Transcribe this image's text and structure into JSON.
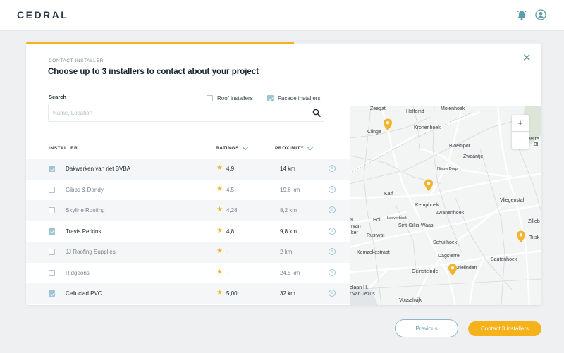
{
  "header": {
    "logo": "CEDRAL",
    "bell_icon": "bell-icon",
    "user_icon": "user-icon"
  },
  "modal": {
    "progress": 0.52,
    "step_label": "CONTACT INSTALLER",
    "title": "Choose up to 3 installers to contact about your project",
    "close_icon": "close-icon",
    "search": {
      "label": "Search",
      "placeholder": "Name, Location",
      "value": ""
    },
    "filters": [
      {
        "label": "Roof installers",
        "checked": false
      },
      {
        "label": "Facade installers",
        "checked": true
      }
    ],
    "table": {
      "col_installer": "INSTALLER",
      "col_ratings": "RATINGS",
      "col_proximity": "PROXIMITY",
      "rows": [
        {
          "name": "Dakwerken van riet BVBA",
          "rating": "4,9",
          "distance": "14 km",
          "selected": true
        },
        {
          "name": "Gibbs & Dandy",
          "rating": "4,5",
          "distance": "19,6 km",
          "selected": false
        },
        {
          "name": "Skyline Roofing",
          "rating": "4,28",
          "distance": "8,2 km",
          "selected": false
        },
        {
          "name": "Travis Perkins",
          "rating": "4,8",
          "distance": "9,8 km",
          "selected": true
        },
        {
          "name": "JJ Roofing Supplies",
          "rating": "-",
          "distance": "2 km",
          "selected": false
        },
        {
          "name": "Ridgeons",
          "rating": "-",
          "distance": "24,5 km",
          "selected": false
        },
        {
          "name": "Celluclad PVC",
          "rating": "5,00",
          "distance": "32 km",
          "selected": true
        }
      ]
    },
    "map": {
      "zoom_in": "+",
      "zoom_out": "−",
      "labels": {
        "zeegat": "Zeegat",
        "halfeind": "Halfeind",
        "molenhoek": "Molenhoek",
        "clinge": "Clinge",
        "kronenhoek": "Kronenhoek",
        "verre": "Verre",
        "bl": "Bl",
        "bloempot": "Bloempot",
        "zwaantje": "Zwaantje",
        "nieuwdorp": "Nieuw Dorp",
        "kalf": "Kalf",
        "vliegenstal": "Vliegenstal",
        "kemphoek": "Kemphoek",
        "zwanenhoek": "Zwanenhoek",
        "hol": "Hol",
        "loeverbeek": "Loeverbeek",
        "sintgillis": "Sint-Gillis-Waas",
        "n": "N",
        "zwvan": "rvan",
        "ker": "ker",
        "zillebe": "Zilleb",
        "rustwat": "Rustwat",
        "tijsk": "Tijsk",
        "schuilhoek": "Schuilhoek",
        "kemzeke": "Kemzekestraat",
        "dagsterre": "Dagsterre",
        "bautenhoek": "Bautenhoek",
        "geinsteinde": "Geinsteinde",
        "drielinden": "Drielinden",
        "elaan": "elaan H.",
        "jezus": "r van Jezus",
        "vosselwijk": "Vosselwijk"
      },
      "pins": [
        {
          "name": "clinge-pin"
        },
        {
          "name": "kalf-pin"
        },
        {
          "name": "tijsk-pin"
        },
        {
          "name": "drielinden-pin"
        }
      ]
    }
  },
  "footer": {
    "previous": "Previous",
    "contact": "Contact 3 installers"
  }
}
